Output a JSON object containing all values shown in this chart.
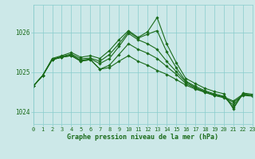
{
  "xlabel": "Graphe pression niveau de la mer (hPa)",
  "xlim": [
    0,
    23
  ],
  "ylim": [
    1023.7,
    1026.7
  ],
  "yticks": [
    1024,
    1025,
    1026
  ],
  "xticks": [
    0,
    1,
    2,
    3,
    4,
    5,
    6,
    7,
    8,
    9,
    10,
    11,
    12,
    13,
    14,
    15,
    16,
    17,
    18,
    19,
    20,
    21,
    22,
    23
  ],
  "background_color": "#cce8e8",
  "grid_color": "#88cccc",
  "line_color": "#1a6b1a",
  "marker": "D",
  "markersize": 1.8,
  "linewidth": 0.8,
  "lines": [
    [
      1024.65,
      1024.92,
      1025.32,
      1025.38,
      1025.42,
      1025.28,
      1025.32,
      1025.08,
      1025.12,
      1025.28,
      1025.42,
      1025.28,
      1025.18,
      1025.05,
      1024.95,
      1024.82,
      1024.68,
      1024.58,
      1024.5,
      1024.42,
      1024.38,
      1024.28,
      1024.45,
      1024.42
    ],
    [
      1024.65,
      1024.92,
      1025.32,
      1025.38,
      1025.42,
      1025.28,
      1025.32,
      1025.08,
      1025.18,
      1025.45,
      1025.72,
      1025.58,
      1025.48,
      1025.35,
      1025.15,
      1024.95,
      1024.72,
      1024.6,
      1024.5,
      1024.42,
      1024.36,
      1024.25,
      1024.42,
      1024.4
    ],
    [
      1024.65,
      1024.92,
      1025.32,
      1025.38,
      1025.44,
      1025.3,
      1025.34,
      1025.22,
      1025.35,
      1025.65,
      1025.98,
      1025.82,
      1025.72,
      1025.58,
      1025.28,
      1025.02,
      1024.76,
      1024.62,
      1024.52,
      1024.44,
      1024.38,
      1024.18,
      1024.45,
      1024.42
    ],
    [
      1024.65,
      1024.92,
      1025.33,
      1025.4,
      1025.46,
      1025.34,
      1025.36,
      1025.28,
      1025.45,
      1025.72,
      1026.02,
      1025.86,
      1025.96,
      1026.05,
      1025.52,
      1025.12,
      1024.78,
      1024.65,
      1024.54,
      1024.46,
      1024.4,
      1024.12,
      1024.45,
      1024.43
    ],
    [
      1024.65,
      1024.92,
      1025.35,
      1025.42,
      1025.5,
      1025.38,
      1025.42,
      1025.35,
      1025.55,
      1025.82,
      1026.05,
      1025.88,
      1026.02,
      1026.38,
      1025.72,
      1025.25,
      1024.85,
      1024.72,
      1024.6,
      1024.52,
      1024.46,
      1024.08,
      1024.48,
      1024.45
    ]
  ]
}
